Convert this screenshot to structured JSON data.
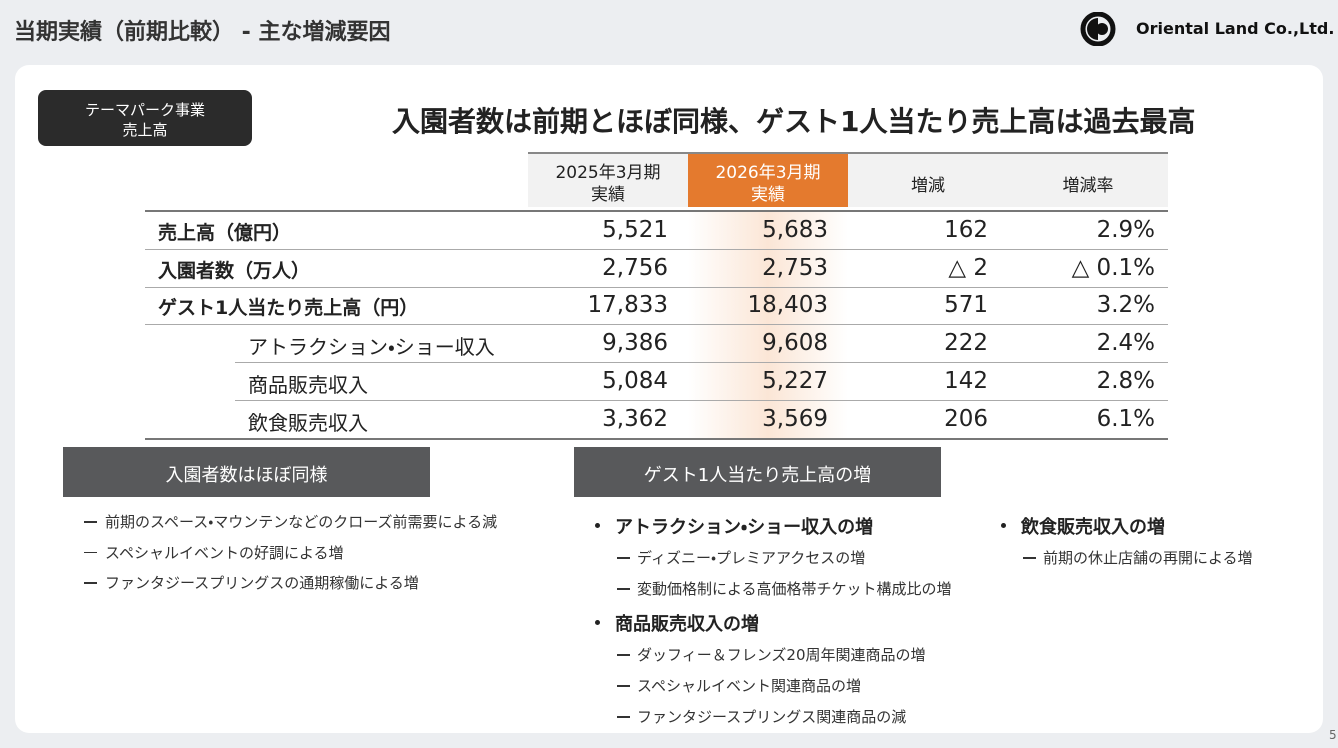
{
  "header": {
    "title": "当期実績（前期比較） - 主な増減要因",
    "logo_text": "Oriental Land Co.,Ltd.",
    "page_number": "5"
  },
  "badge": {
    "lines": [
      "テーマパーク事業",
      "売上高"
    ]
  },
  "headline": "入園者数は前期とほぼ同様、ゲスト1人当たり売上高は過去最高",
  "table": {
    "columns": [
      [
        "2025年3月期",
        "実績"
      ],
      [
        "2026年3月期",
        "実績"
      ],
      [
        "増減"
      ],
      [
        "増減率"
      ]
    ],
    "main_rows": [
      {
        "label": "売上高（億円）",
        "values": [
          "5,521",
          "5,683",
          "162",
          "2.9%"
        ]
      },
      {
        "label": "入園者数（万人）",
        "values": [
          "2,756",
          "2,753",
          "△ 2",
          "△ 0.1%"
        ]
      },
      {
        "label": "ゲスト1人当たり売上高（円）",
        "values": [
          "17,833",
          "18,403",
          "571",
          "3.2%"
        ]
      }
    ],
    "sub_rows": [
      {
        "label": "アトラクション・ショー収入",
        "values": [
          "9,386",
          "9,608",
          "222",
          "2.4%"
        ]
      },
      {
        "label": "商品販売収入",
        "values": [
          "5,084",
          "5,227",
          "142",
          "2.8%"
        ]
      },
      {
        "label": "飲食販売収入",
        "values": [
          "3,362",
          "3,569",
          "206",
          "6.1%"
        ]
      }
    ]
  },
  "attendance": {
    "heading": "入園者数はほぼ同様",
    "items": [
      "前期のスペース・マウンテンなどのクローズ前需要による減",
      "スペシャルイベントの好調による増",
      "ファンタジースプリングスの通期稼働による増"
    ]
  },
  "per_guest": {
    "heading": "ゲスト1人当たり売上高の増",
    "groups": [
      {
        "title": "アトラクション・ショー収入の増",
        "items": [
          "ディズニー・プレミアアクセスの増",
          "変動価格制による高価格帯チケット構成比の増"
        ]
      },
      {
        "title": "商品販売収入の増",
        "items": [
          "ダッフィー＆フレンズ20周年関連商品の増",
          "スペシャルイベント関連商品の増",
          "ファンタジースプリングス関連商品の減"
        ]
      },
      {
        "title": "飲食販売収入の増",
        "items": [
          "前期の休止店舗の再開による増"
        ]
      }
    ]
  }
}
